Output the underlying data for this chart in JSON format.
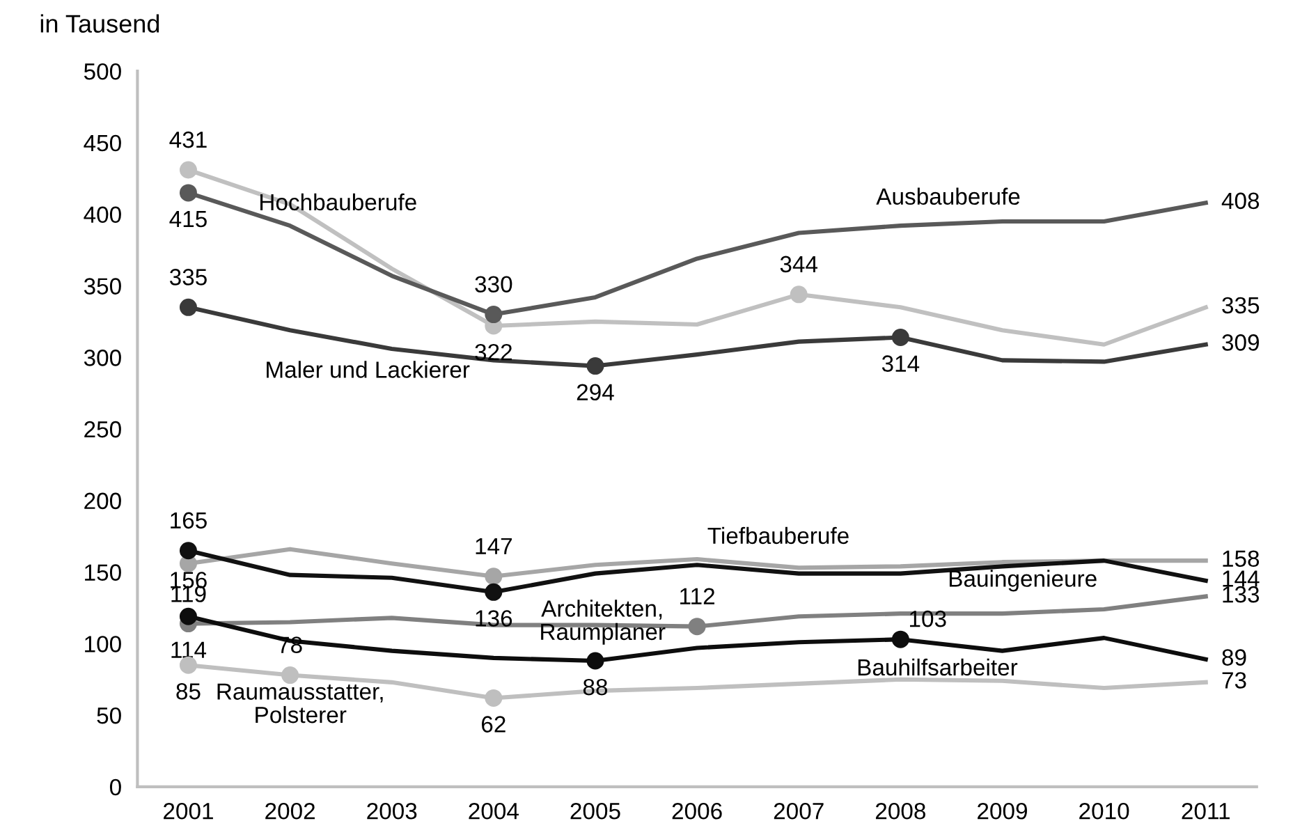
{
  "chart_data": {
    "type": "line",
    "ylabel": "in Tausend",
    "categories": [
      "2001",
      "2002",
      "2003",
      "2004",
      "2005",
      "2006",
      "2007",
      "2008",
      "2009",
      "2010",
      "2011"
    ],
    "ylim": [
      0,
      500
    ],
    "yticks": [
      0,
      50,
      100,
      150,
      200,
      250,
      300,
      350,
      400,
      450,
      500
    ],
    "grid": false,
    "legend": false,
    "line_style": "solid",
    "series": [
      {
        "name": "Hochbauberufe",
        "color": "#c0c0c0",
        "values": [
          431,
          407,
          362,
          322,
          325,
          323,
          344,
          335,
          319,
          309,
          335
        ],
        "value_labels": [
          "431",
          null,
          null,
          "322",
          null,
          null,
          "344",
          null,
          null,
          null,
          "335"
        ]
      },
      {
        "name": "Ausbauberufe",
        "color": "#595959",
        "values": [
          415,
          392,
          357,
          330,
          342,
          369,
          387,
          392,
          395,
          395,
          408
        ],
        "value_labels": [
          "415",
          null,
          null,
          "330",
          null,
          null,
          null,
          null,
          null,
          null,
          "408"
        ]
      },
      {
        "name": "Maler und Lackierer",
        "color": "#3a3a3a",
        "values": [
          335,
          319,
          306,
          298,
          294,
          302,
          311,
          314,
          298,
          297,
          309
        ],
        "value_labels": [
          "335",
          null,
          null,
          null,
          "294",
          null,
          null,
          "314",
          null,
          null,
          "309"
        ]
      },
      {
        "name": "Tiefbauberufe",
        "color": "#a6a6a6",
        "values": [
          156,
          166,
          156,
          147,
          155,
          159,
          153,
          154,
          157,
          158,
          158
        ],
        "value_labels": [
          "156",
          null,
          null,
          "147",
          null,
          null,
          null,
          null,
          null,
          null,
          "158"
        ]
      },
      {
        "name": "Bauingenieure",
        "color": "#111111",
        "values": [
          165,
          148,
          146,
          136,
          149,
          155,
          149,
          149,
          154,
          158,
          144
        ],
        "value_labels": [
          "165",
          null,
          null,
          "136",
          null,
          null,
          null,
          null,
          null,
          null,
          "144"
        ]
      },
      {
        "name": "Architekten,\nRaumplaner",
        "color": "#808080",
        "values": [
          114,
          115,
          118,
          113,
          113,
          112,
          119,
          121,
          121,
          124,
          133
        ],
        "value_labels": [
          "114",
          null,
          null,
          null,
          null,
          "112",
          null,
          null,
          null,
          null,
          "133"
        ]
      },
      {
        "name": "Bauhilfsarbeiter",
        "color": "#0d0d0d",
        "values": [
          119,
          102,
          95,
          90,
          88,
          97,
          101,
          103,
          95,
          104,
          89
        ],
        "value_labels": [
          "119",
          null,
          null,
          null,
          "88",
          null,
          null,
          "103",
          null,
          null,
          "89"
        ]
      },
      {
        "name": "Raumausstatter,\nPolsterer",
        "color": "#bfbfbf",
        "values": [
          85,
          78,
          73,
          62,
          67,
          69,
          72,
          75,
          74,
          69,
          73
        ],
        "value_labels": [
          "85",
          "78",
          null,
          "62",
          null,
          null,
          null,
          null,
          null,
          null,
          "73"
        ]
      }
    ]
  }
}
